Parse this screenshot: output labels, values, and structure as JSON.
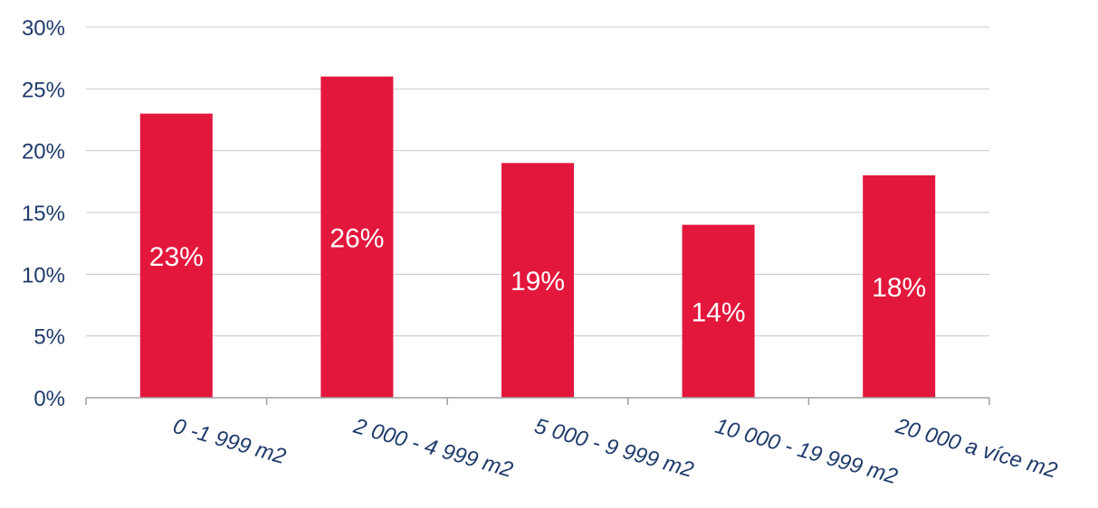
{
  "chart_data": {
    "type": "bar",
    "categories": [
      "0 -1 999 m2",
      "2 000 - 4 999 m2",
      "5 000 - 9 999 m2",
      "10 000 - 19 999 m2",
      "20 000 a více m2"
    ],
    "values": [
      23,
      26,
      19,
      14,
      18
    ],
    "data_labels": [
      "23%",
      "26%",
      "19%",
      "14%",
      "18%"
    ],
    "y_ticks": [
      0,
      5,
      10,
      15,
      20,
      25,
      30
    ],
    "y_tick_labels": [
      "0%",
      "5%",
      "10%",
      "15%",
      "20%",
      "25%",
      "30%"
    ],
    "ylim": [
      0,
      30
    ],
    "grid": true,
    "legend": "none",
    "bar_color": "#e3173c"
  }
}
